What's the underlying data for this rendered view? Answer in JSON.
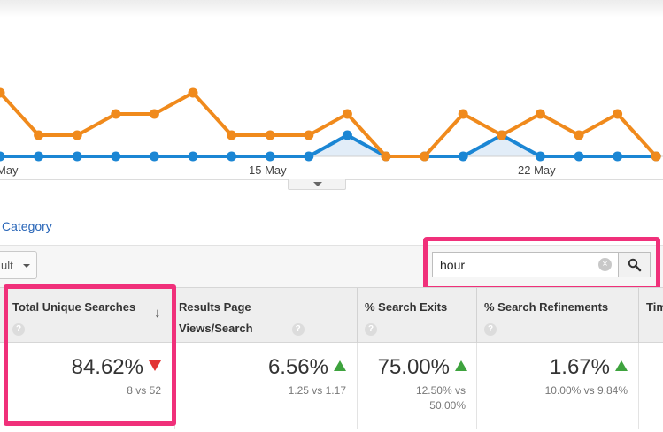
{
  "chart_data": {
    "type": "line",
    "x_tick_labels": [
      "May",
      "15 May",
      "22 May"
    ],
    "series": [
      {
        "color": "#f08a1c",
        "values": [
          3,
          1,
          1,
          2,
          2,
          3,
          1,
          1,
          1,
          2,
          0,
          0,
          2,
          1,
          2,
          1,
          2,
          0
        ]
      },
      {
        "color": "#1b86d4",
        "values": [
          0,
          0,
          0,
          0,
          0,
          0,
          0,
          0,
          0,
          1,
          0,
          0,
          0,
          1,
          0,
          0,
          0,
          0
        ]
      }
    ],
    "grid": false
  },
  "explorer": {
    "category_link": "Category",
    "segment_dropdown": "ult",
    "search": {
      "value": "hour",
      "clear_icon": "clear-icon",
      "search_icon": "magnifier-icon"
    }
  },
  "table": {
    "columns": [
      {
        "label": "Total Unique Searches",
        "value": "84.62%",
        "comparison": "8 vs 52",
        "trend": "down"
      },
      {
        "label": "Results Page Views/Search",
        "value": "6.56%",
        "comparison": "1.25 vs 1.17",
        "trend": "up"
      },
      {
        "label": "% Search Exits",
        "value": "75.00%",
        "comparison_lines": [
          "12.50% vs",
          "50.00%"
        ],
        "trend": "up"
      },
      {
        "label": "% Search Refinements",
        "value": "1.67%",
        "comparison": "10.00% vs 9.84%",
        "trend": "up"
      },
      {
        "label": "Tim"
      }
    ],
    "help_glyph": "?",
    "sort_glyph": "↓"
  },
  "colors": {
    "highlight": "#f0307a",
    "increase": "#3ea33e",
    "decrease": "#e23434"
  }
}
